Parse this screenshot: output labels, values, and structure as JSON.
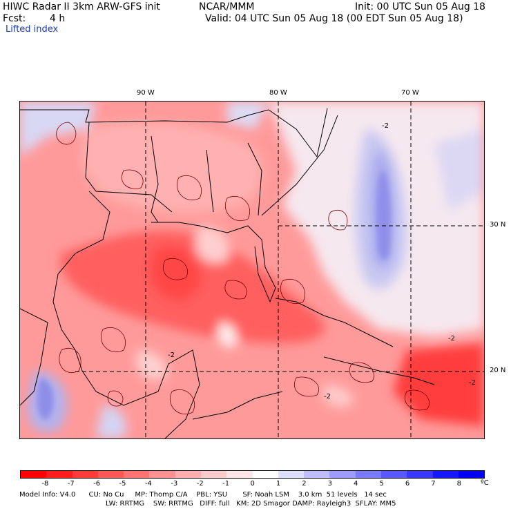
{
  "header": {
    "title": "HIWC Radar II 3km ARW-GFS init",
    "org": "NCAR/MMM",
    "init": "Init: 00 UTC Sun 05 Aug 18",
    "fcst_label": "Fcst:",
    "fcst_value": "4 h",
    "valid": "Valid: 04 UTC Sun 05 Aug 18 (00 EDT Sun 05 Aug 18)",
    "field": "Lifted index"
  },
  "map": {
    "lon_labels": [
      "90 W",
      "80 W",
      "70 W"
    ],
    "lat_labels": [
      "30 N",
      "20 N"
    ],
    "contour_labels": [
      "-2",
      "-2",
      "-2",
      "-2",
      "-2"
    ]
  },
  "colorbar": {
    "unit": "ºC",
    "ticks": [
      "-8",
      "-7",
      "-6",
      "-5",
      "-4",
      "-3",
      "-2",
      "-1",
      "0",
      "1",
      "2",
      "3",
      "4",
      "5",
      "6",
      "7",
      "8"
    ],
    "colors": [
      "#ff0000",
      "#ff1d1d",
      "#ff3a3a",
      "#ff5656",
      "#ff7373",
      "#ff9191",
      "#ffadad",
      "#ffcaca",
      "#ffe6e6",
      "#ffffff",
      "#dedeff",
      "#bdbdff",
      "#9c9cff",
      "#7a7aff",
      "#5959ff",
      "#3838ff",
      "#1717ff",
      "#0000f2"
    ]
  },
  "footer": {
    "line1": "Model Info: V4.0      CU: No Cu     MP: Thomp C/A    PBL: YSU       SF: Noah LSM    3.0 km  51 levels   14 sec",
    "line2": "LW: RRTMG    SW: RRTMG   DIFF: full   KM: 2D Smagor DAMP: Rayleigh3  SFLAY: MM5"
  }
}
